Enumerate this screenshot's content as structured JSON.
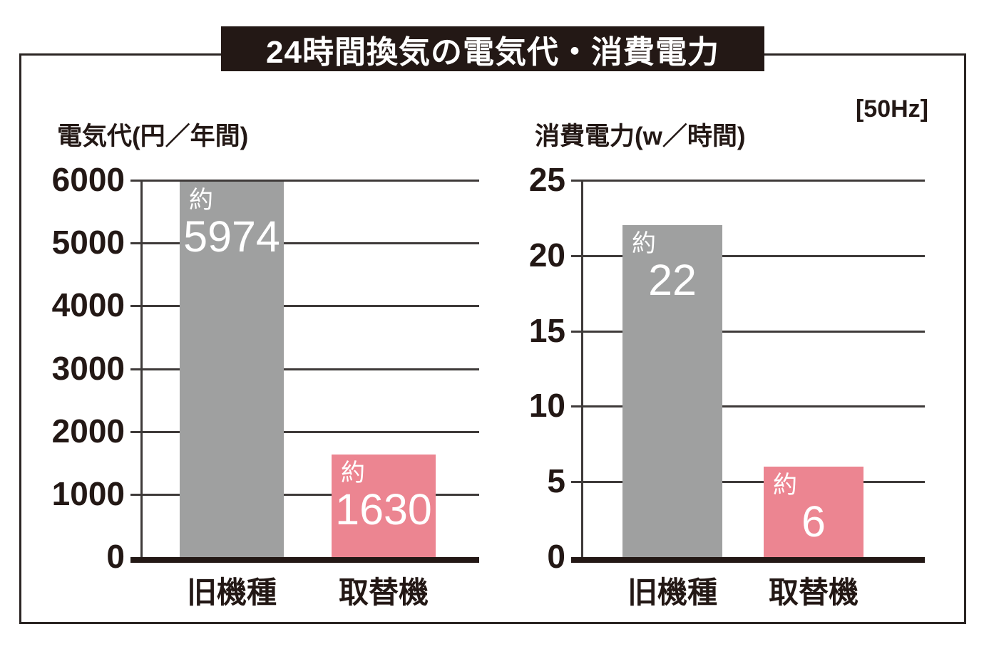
{
  "title": "24時間換気の電気代・消費電力",
  "frequency_note": "[50Hz]",
  "colors": {
    "banner_bg": "#231815",
    "frame_border": "#2b2523",
    "grid_line": "#3e3a39",
    "text": "#231815",
    "bar_text": "#ffffff",
    "old_model_bar": "#9fa0a0",
    "replacement_bar": "#ec8591"
  },
  "chart_data": [
    {
      "type": "bar",
      "title": "電気代(円／年間)",
      "ylabel": "電気代",
      "unit": "円／年間",
      "categories": [
        "旧機種",
        "取替機"
      ],
      "values": [
        5974,
        1630
      ],
      "value_labels": [
        "5974",
        "1630"
      ],
      "value_prefix": "約",
      "yticks": [
        0,
        1000,
        2000,
        3000,
        4000,
        5000,
        6000
      ],
      "ylim": [
        0,
        6000
      ],
      "grid": true,
      "legend": "none",
      "bar_colors": [
        "#9fa0a0",
        "#ec8591"
      ]
    },
    {
      "type": "bar",
      "title": "消費電力(w／時間)",
      "ylabel": "消費電力",
      "unit": "w／時間",
      "note": "[50Hz]",
      "categories": [
        "旧機種",
        "取替機"
      ],
      "values": [
        22,
        6
      ],
      "value_labels": [
        "22",
        "6"
      ],
      "value_prefix": "約",
      "yticks": [
        0,
        5,
        10,
        15,
        20,
        25
      ],
      "ylim": [
        0,
        25
      ],
      "grid": true,
      "legend": "none",
      "bar_colors": [
        "#9fa0a0",
        "#ec8591"
      ]
    }
  ]
}
